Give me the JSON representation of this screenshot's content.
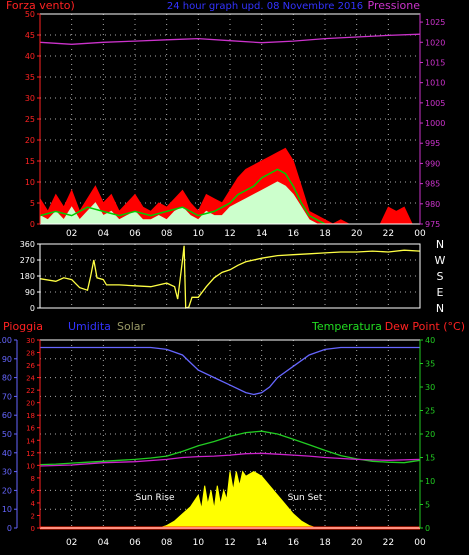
{
  "header": {
    "left_label": "Forza vento)",
    "center_label": "24 hour graph upd. 08 Novembre 2016",
    "right_label": "Pressione"
  },
  "x_tick_labels": [
    "02",
    "04",
    "06",
    "08",
    "10",
    "12",
    "14",
    "16",
    "18",
    "20",
    "22",
    "00"
  ],
  "compass_labels": [
    "N",
    "W",
    "S",
    "E",
    "N"
  ],
  "bottom_header": {
    "pioggia": "Pioggia",
    "umidita": "Umidita",
    "solar": "Solar",
    "temperatura": "Temperatura",
    "dewpoint": "Dew Point (°C)"
  },
  "annotations": {
    "sunrise": "Sun Rise",
    "sunset": "Sun Set"
  },
  "colors": {
    "background": "#000000",
    "axis": "#ffffff",
    "grid": "#aaaaaa",
    "wind_gust": "#ff0000",
    "wind_avg": "#00cc00",
    "wind_speed": "#ccffcc",
    "pressure": "#cc33cc",
    "direction": "#ffff44",
    "humidity": "#6666ff",
    "temperature": "#22cc22",
    "dewpoint": "#cc22cc",
    "solar": "#ffff00",
    "rain": "#ff2200",
    "label_red": "#ff2222",
    "label_blue": "#3333ff",
    "label_magenta": "#cc33cc",
    "label_green": "#22dd22",
    "label_solar": "#999966"
  },
  "chart_data": [
    {
      "type": "area",
      "panel": "wind-pressure",
      "x_range": [
        0,
        24
      ],
      "y_left": {
        "ticks": [
          0,
          5,
          10,
          15,
          20,
          25,
          30,
          35,
          40,
          45,
          50
        ],
        "range": [
          0,
          50
        ]
      },
      "y_right": {
        "ticks": [
          975,
          980,
          985,
          990,
          995,
          1000,
          1005,
          1010,
          1015,
          1020,
          1025
        ],
        "range": [
          975,
          1027
        ]
      },
      "grid": true,
      "series": [
        {
          "key": "gust",
          "x": [
            0,
            0.5,
            1,
            1.5,
            2,
            2.5,
            3,
            3.5,
            4,
            4.5,
            5,
            5.5,
            6,
            6.5,
            7,
            7.5,
            8,
            8.5,
            9,
            9.5,
            10,
            10.5,
            11,
            11.5,
            12,
            12.5,
            13,
            13.5,
            14,
            14.5,
            15,
            15.5,
            16,
            16.5,
            17,
            17.5,
            18,
            18.5,
            19,
            19.5,
            20,
            20.5,
            21,
            21.5,
            22,
            22.5,
            23,
            23.5,
            24
          ],
          "values": [
            6,
            3,
            7,
            4,
            8,
            3,
            6,
            9,
            5,
            7,
            3,
            5,
            7,
            4,
            3,
            5,
            4,
            6,
            8,
            5,
            3,
            7,
            6,
            5,
            8,
            11,
            13,
            14,
            15,
            16,
            17,
            18,
            15,
            9,
            3,
            2,
            1,
            0,
            1,
            0,
            0,
            0,
            0,
            0,
            4,
            3,
            4,
            0,
            0
          ]
        },
        {
          "key": "average",
          "x": [
            0,
            1,
            2,
            3,
            4,
            5,
            6,
            7,
            8,
            9,
            10,
            11,
            12,
            12.5,
            13,
            13.5,
            14,
            14.5,
            15,
            15.5,
            16,
            16.5,
            17,
            17.5,
            18
          ],
          "values": [
            2,
            3,
            2,
            4,
            3,
            2,
            3,
            2,
            3,
            4,
            2,
            3,
            5,
            7,
            8,
            9,
            11,
            12,
            13,
            12,
            9,
            5,
            2,
            1,
            0
          ]
        },
        {
          "key": "speed",
          "x": [
            0,
            0.5,
            1,
            1.5,
            2,
            2.5,
            3,
            3.5,
            4,
            4.5,
            5,
            5.5,
            6,
            6.5,
            7,
            7.5,
            8,
            8.5,
            9,
            9.5,
            10,
            10.5,
            11,
            11.5,
            12,
            12.5,
            13,
            13.5,
            14,
            14.5,
            15,
            15.5,
            16,
            16.5,
            17,
            17.5,
            18
          ],
          "values": [
            2,
            1,
            3,
            1,
            4,
            1,
            3,
            5,
            2,
            3,
            1,
            2,
            3,
            1,
            1,
            2,
            1,
            3,
            4,
            2,
            1,
            3,
            2,
            2,
            4,
            5,
            6,
            7,
            8,
            9,
            10,
            9,
            7,
            4,
            1,
            0,
            0
          ]
        },
        {
          "key": "pressure",
          "axis": "right",
          "x": [
            0,
            2,
            4,
            6,
            8,
            10,
            12,
            14,
            16,
            18,
            20,
            22,
            24
          ],
          "values": [
            1020.0,
            1019.5,
            1020.0,
            1020.3,
            1020.6,
            1020.9,
            1020.4,
            1019.9,
            1020.3,
            1020.9,
            1021.3,
            1021.7,
            1022.0
          ]
        }
      ]
    },
    {
      "type": "line",
      "panel": "wind-direction",
      "x_range": [
        0,
        24
      ],
      "y_left": {
        "ticks": [
          0,
          90,
          180,
          270,
          360
        ],
        "range": [
          0,
          360
        ]
      },
      "grid": true,
      "series": [
        {
          "key": "direction",
          "x": [
            0,
            1,
            1.5,
            2,
            2.5,
            3,
            3.2,
            3.4,
            3.6,
            4,
            4.2,
            5,
            6,
            7,
            8,
            8.5,
            8.7,
            9,
            9.1,
            9.2,
            9.4,
            9.6,
            10,
            10.5,
            11,
            11.5,
            12,
            12.5,
            13,
            14,
            15,
            16,
            17,
            18,
            19,
            20,
            21,
            22,
            23,
            24
          ],
          "values": [
            165,
            150,
            170,
            160,
            115,
            100,
            180,
            270,
            170,
            160,
            130,
            130,
            125,
            120,
            140,
            120,
            50,
            270,
            350,
            0,
            5,
            60,
            60,
            120,
            170,
            200,
            215,
            240,
            260,
            280,
            295,
            300,
            305,
            310,
            315,
            315,
            320,
            315,
            325,
            320
          ]
        }
      ]
    },
    {
      "type": "line",
      "panel": "weather-lower",
      "x_range": [
        0,
        24
      ],
      "y_left_outer": {
        "label": "Pioggia",
        "ticks": [
          0,
          10,
          20,
          30,
          40,
          50,
          60,
          70,
          80,
          90,
          100
        ],
        "range": [
          0,
          100
        ]
      },
      "y_left_inner": {
        "label": "Umidita",
        "ticks": [
          0,
          2,
          4,
          6,
          8,
          10,
          12,
          14,
          16,
          18,
          20,
          22,
          24,
          26,
          28,
          30
        ],
        "range": [
          0,
          30
        ]
      },
      "y_right": {
        "label": "Dew Point (°C)",
        "ticks": [
          0,
          5,
          10,
          15,
          20,
          25,
          30,
          35,
          40
        ],
        "range": [
          0,
          40
        ]
      },
      "grid": true,
      "series": [
        {
          "key": "humidity",
          "axis": "left_outer",
          "x": [
            0,
            1,
            2,
            3,
            4,
            5,
            6,
            7,
            8,
            9,
            9.5,
            10,
            11,
            12,
            13,
            13.5,
            14,
            14.5,
            15,
            16,
            17,
            18,
            19,
            20,
            21,
            22,
            23,
            24
          ],
          "values": [
            96,
            96,
            96,
            96,
            96,
            96,
            96,
            96,
            95,
            92,
            88,
            84,
            80,
            76,
            72,
            71,
            72,
            75,
            80,
            86,
            92,
            95,
            96,
            96,
            96,
            96,
            96,
            96
          ]
        },
        {
          "key": "temperature",
          "axis": "right",
          "x": [
            0,
            1,
            2,
            3,
            4,
            5,
            6,
            7,
            8,
            9,
            10,
            11,
            12,
            13,
            14,
            15,
            16,
            17,
            18,
            19,
            20,
            21,
            22,
            23,
            24
          ],
          "values": [
            13.5,
            13.6,
            13.8,
            14.0,
            14.2,
            14.4,
            14.6,
            14.9,
            15.3,
            16.3,
            17.5,
            18.4,
            19.5,
            20.3,
            20.6,
            20.0,
            18.9,
            17.7,
            16.5,
            15.4,
            14.7,
            14.2,
            14.0,
            13.9,
            14.4
          ]
        },
        {
          "key": "dewpoint",
          "axis": "right",
          "x": [
            0,
            2,
            4,
            6,
            8,
            9,
            10,
            11,
            12,
            13,
            14,
            15,
            16,
            17,
            18,
            20,
            22,
            24
          ],
          "values": [
            13.2,
            13.4,
            13.9,
            14.1,
            14.6,
            15.0,
            15.2,
            15.3,
            15.5,
            15.8,
            15.9,
            15.7,
            15.5,
            15.3,
            15.0,
            14.6,
            14.4,
            14.6
          ]
        },
        {
          "key": "solar",
          "axis": "right",
          "x": [
            7.5,
            8,
            8.5,
            9,
            9.5,
            10,
            10.2,
            10.4,
            10.6,
            10.8,
            11,
            11.2,
            11.4,
            11.6,
            11.8,
            12,
            12.2,
            12.4,
            12.6,
            12.8,
            13,
            13.5,
            14,
            14.5,
            15,
            15.5,
            16,
            16.5,
            17,
            17.5
          ],
          "values": [
            0,
            0.5,
            1.5,
            3,
            4.5,
            7,
            4,
            9,
            5,
            8,
            4,
            9,
            5,
            8,
            6,
            12,
            8,
            12,
            9,
            12,
            11,
            12,
            11,
            9,
            7,
            5,
            3,
            1.5,
            0.5,
            0
          ]
        },
        {
          "key": "rain",
          "axis": "left_outer",
          "x": [
            0,
            24
          ],
          "values": [
            0,
            0
          ]
        }
      ]
    }
  ]
}
